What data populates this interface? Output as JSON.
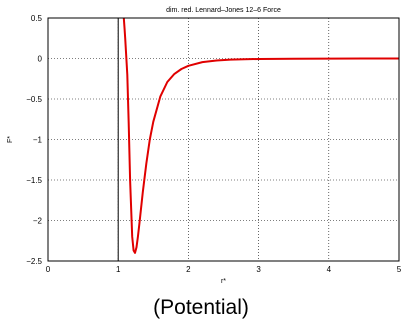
{
  "caption": "(Potential)",
  "chart_data": {
    "type": "line",
    "title": "dim. red. Lennard–Jones 12–6 Force",
    "xlabel": "r*",
    "ylabel": "F*",
    "xlim": [
      0,
      5
    ],
    "ylim": [
      -2.5,
      0.5
    ],
    "xticks": [
      "0",
      "1",
      "2",
      "3",
      "4",
      "5"
    ],
    "yticks": [
      "0.5",
      "0",
      "−0.5",
      "−1",
      "−1.5",
      "−2",
      "−2.5"
    ],
    "grid": true,
    "vertical_marker_x": 1,
    "series": [
      {
        "color": "#e00000",
        "x": [
          1.08,
          1.09,
          1.1,
          1.11,
          1.12,
          1.13,
          1.15,
          1.17,
          1.2,
          1.22,
          1.24,
          1.26,
          1.28,
          1.3,
          1.35,
          1.4,
          1.45,
          1.5,
          1.6,
          1.7,
          1.8,
          1.9,
          2.0,
          2.2,
          2.4,
          2.6,
          2.8,
          3.0,
          3.5,
          4.0,
          4.5,
          5.0
        ],
        "y": [
          0.5,
          0.38,
          0.25,
          0.1,
          -0.05,
          -0.2,
          -0.8,
          -1.5,
          -2.2,
          -2.37,
          -2.4,
          -2.33,
          -2.2,
          -2.05,
          -1.65,
          -1.3,
          -1.0,
          -0.78,
          -0.47,
          -0.29,
          -0.19,
          -0.13,
          -0.09,
          -0.045,
          -0.025,
          -0.014,
          -0.009,
          -0.006,
          -0.003,
          -0.001,
          -0.0005,
          0
        ]
      }
    ]
  }
}
